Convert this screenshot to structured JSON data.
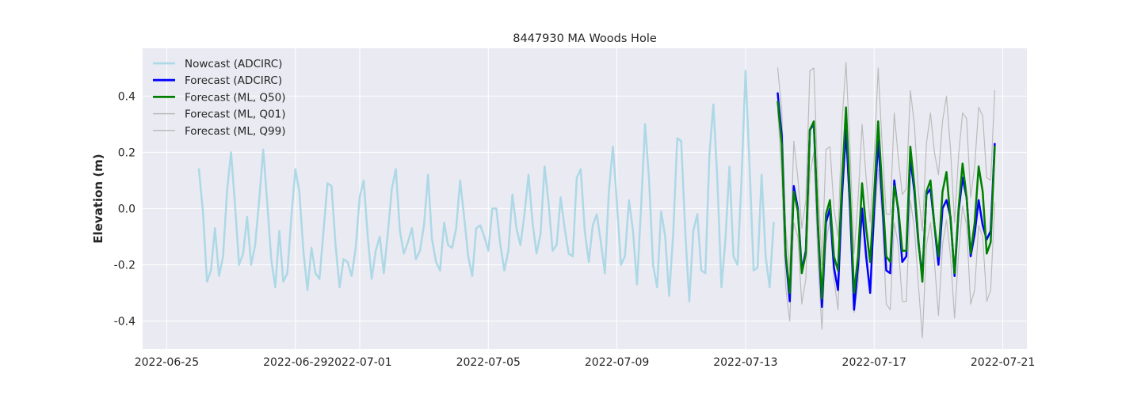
{
  "chart_data": {
    "type": "line",
    "title": "8447930 MA Woods Hole",
    "xlabel": "",
    "ylabel": "Elevation (m)",
    "xlim": [
      "2022-06-24T06:00",
      "2022-07-21T18:00"
    ],
    "ylim": [
      -0.5,
      0.57
    ],
    "grid": true,
    "legend_position": "top-left",
    "x_ticks": [
      "2022-06-25",
      "2022-06-29",
      "2022-07-01",
      "2022-07-05",
      "2022-07-09",
      "2022-07-13",
      "2022-07-17",
      "2022-07-21"
    ],
    "y_ticks": [
      "-0.4",
      "-0.2",
      "0.0",
      "0.2",
      "0.4"
    ],
    "y_tick_values": [
      -0.4,
      -0.2,
      0.0,
      0.2,
      0.4
    ],
    "series": [
      {
        "name": "Nowcast (ADCIRC)",
        "color": "#add8e6",
        "x_start": "2022-06-26T00:00",
        "step_hours": 3,
        "values": [
          0.14,
          -0.01,
          -0.26,
          -0.22,
          -0.07,
          -0.24,
          -0.17,
          0.06,
          0.2,
          0.01,
          -0.2,
          -0.16,
          -0.03,
          -0.2,
          -0.13,
          0.03,
          0.21,
          0.02,
          -0.18,
          -0.28,
          -0.08,
          -0.26,
          -0.23,
          -0.03,
          0.14,
          0.06,
          -0.15,
          -0.29,
          -0.14,
          -0.23,
          -0.25,
          -0.08,
          0.09,
          0.08,
          -0.13,
          -0.28,
          -0.18,
          -0.19,
          -0.24,
          -0.14,
          0.04,
          0.1,
          -0.1,
          -0.25,
          -0.15,
          -0.1,
          -0.23,
          -0.09,
          0.07,
          0.14,
          -0.08,
          -0.16,
          -0.12,
          -0.07,
          -0.18,
          -0.15,
          -0.06,
          0.12,
          -0.11,
          -0.19,
          -0.22,
          -0.05,
          -0.13,
          -0.14,
          -0.07,
          0.1,
          -0.03,
          -0.17,
          -0.24,
          -0.07,
          -0.06,
          -0.1,
          -0.15,
          0.0,
          0.0,
          -0.13,
          -0.22,
          -0.15,
          0.05,
          -0.07,
          -0.13,
          -0.02,
          0.12,
          -0.05,
          -0.16,
          -0.09,
          0.15,
          0.02,
          -0.15,
          -0.13,
          0.04,
          -0.07,
          -0.16,
          -0.17,
          0.11,
          0.14,
          -0.08,
          -0.19,
          -0.06,
          -0.02,
          -0.12,
          -0.23,
          0.06,
          0.22,
          0.02,
          -0.2,
          -0.17,
          0.03,
          -0.08,
          -0.27,
          0.0,
          0.3,
          0.1,
          -0.2,
          -0.28,
          -0.01,
          -0.1,
          -0.31,
          -0.09,
          0.25,
          0.24,
          -0.08,
          -0.33,
          -0.08,
          -0.02,
          -0.22,
          -0.23,
          0.19,
          0.37,
          0.1,
          -0.28,
          -0.11,
          0.15,
          -0.17,
          -0.2,
          0.1,
          0.49,
          0.15,
          -0.22,
          -0.21,
          0.12,
          -0.17,
          -0.28,
          -0.05
        ]
      },
      {
        "name": "Forecast (ADCIRC)",
        "color": "#0000ff",
        "x_start": "2022-07-14T00:00",
        "step_hours": 3,
        "values": [
          0.41,
          0.26,
          -0.17,
          -0.33,
          0.08,
          0.0,
          -0.22,
          -0.15,
          0.28,
          0.3,
          -0.06,
          -0.35,
          -0.05,
          0.0,
          -0.21,
          -0.29,
          0.05,
          0.28,
          0.0,
          -0.36,
          -0.2,
          0.0,
          -0.17,
          -0.3,
          0.0,
          0.24,
          0.03,
          -0.22,
          -0.23,
          0.1,
          -0.01,
          -0.19,
          -0.17,
          0.18,
          0.06,
          -0.12,
          -0.24,
          0.05,
          0.07,
          -0.06,
          -0.2,
          0.0,
          0.03,
          -0.03,
          -0.24,
          -0.01,
          0.11,
          0.04,
          -0.17,
          -0.09,
          0.03,
          -0.06,
          -0.11,
          -0.08,
          0.23
        ]
      },
      {
        "name": "Forecast (ML, Q50)",
        "color": "#008000",
        "x_start": "2022-07-14T00:00",
        "step_hours": 3,
        "values": [
          0.38,
          0.23,
          -0.16,
          -0.3,
          0.06,
          -0.01,
          -0.23,
          -0.16,
          0.28,
          0.31,
          -0.05,
          -0.32,
          -0.02,
          0.03,
          -0.17,
          -0.22,
          0.1,
          0.36,
          0.04,
          -0.3,
          -0.17,
          0.09,
          -0.07,
          -0.19,
          0.05,
          0.31,
          0.07,
          -0.17,
          -0.19,
          0.08,
          0.0,
          -0.15,
          -0.15,
          0.22,
          0.08,
          -0.11,
          -0.26,
          0.06,
          0.1,
          -0.06,
          -0.17,
          0.06,
          0.13,
          -0.04,
          -0.23,
          0.0,
          0.16,
          0.04,
          -0.16,
          -0.05,
          0.15,
          0.06,
          -0.16,
          -0.12,
          0.22
        ]
      },
      {
        "name": "Forecast (ML, Q01)",
        "color": "#bbbbbb",
        "x_start": "2022-07-14T00:00",
        "step_hours": 3,
        "values": [
          0.35,
          0.12,
          -0.28,
          -0.4,
          -0.05,
          -0.1,
          -0.34,
          -0.25,
          0.12,
          0.2,
          -0.18,
          -0.43,
          -0.12,
          -0.04,
          -0.25,
          -0.36,
          0.0,
          0.26,
          -0.05,
          -0.37,
          -0.27,
          -0.03,
          -0.13,
          -0.29,
          -0.07,
          0.14,
          -0.03,
          -0.34,
          -0.36,
          -0.05,
          -0.13,
          -0.33,
          -0.33,
          0.03,
          -0.07,
          -0.27,
          -0.46,
          -0.13,
          -0.05,
          -0.19,
          -0.38,
          -0.13,
          -0.04,
          -0.17,
          -0.39,
          -0.16,
          0.01,
          -0.06,
          -0.34,
          -0.29,
          -0.06,
          -0.1,
          -0.33,
          -0.29,
          0.02
        ]
      },
      {
        "name": "Forecast (ML, Q99)",
        "color": "#bbbbbb",
        "x_start": "2022-07-14T00:00",
        "step_hours": 3,
        "values": [
          0.5,
          0.35,
          -0.07,
          -0.22,
          0.24,
          0.11,
          -0.07,
          0.03,
          0.49,
          0.5,
          0.1,
          -0.2,
          0.21,
          0.22,
          0.0,
          -0.1,
          0.31,
          0.52,
          0.21,
          -0.16,
          0.03,
          0.3,
          0.11,
          -0.05,
          0.18,
          0.5,
          0.22,
          -0.02,
          -0.02,
          0.34,
          0.18,
          0.05,
          0.07,
          0.42,
          0.3,
          0.06,
          -0.08,
          0.23,
          0.34,
          0.2,
          0.12,
          0.31,
          0.4,
          0.21,
          -0.05,
          0.19,
          0.34,
          0.32,
          0.04,
          0.15,
          0.36,
          0.33,
          0.11,
          0.1,
          0.42
        ]
      }
    ]
  }
}
